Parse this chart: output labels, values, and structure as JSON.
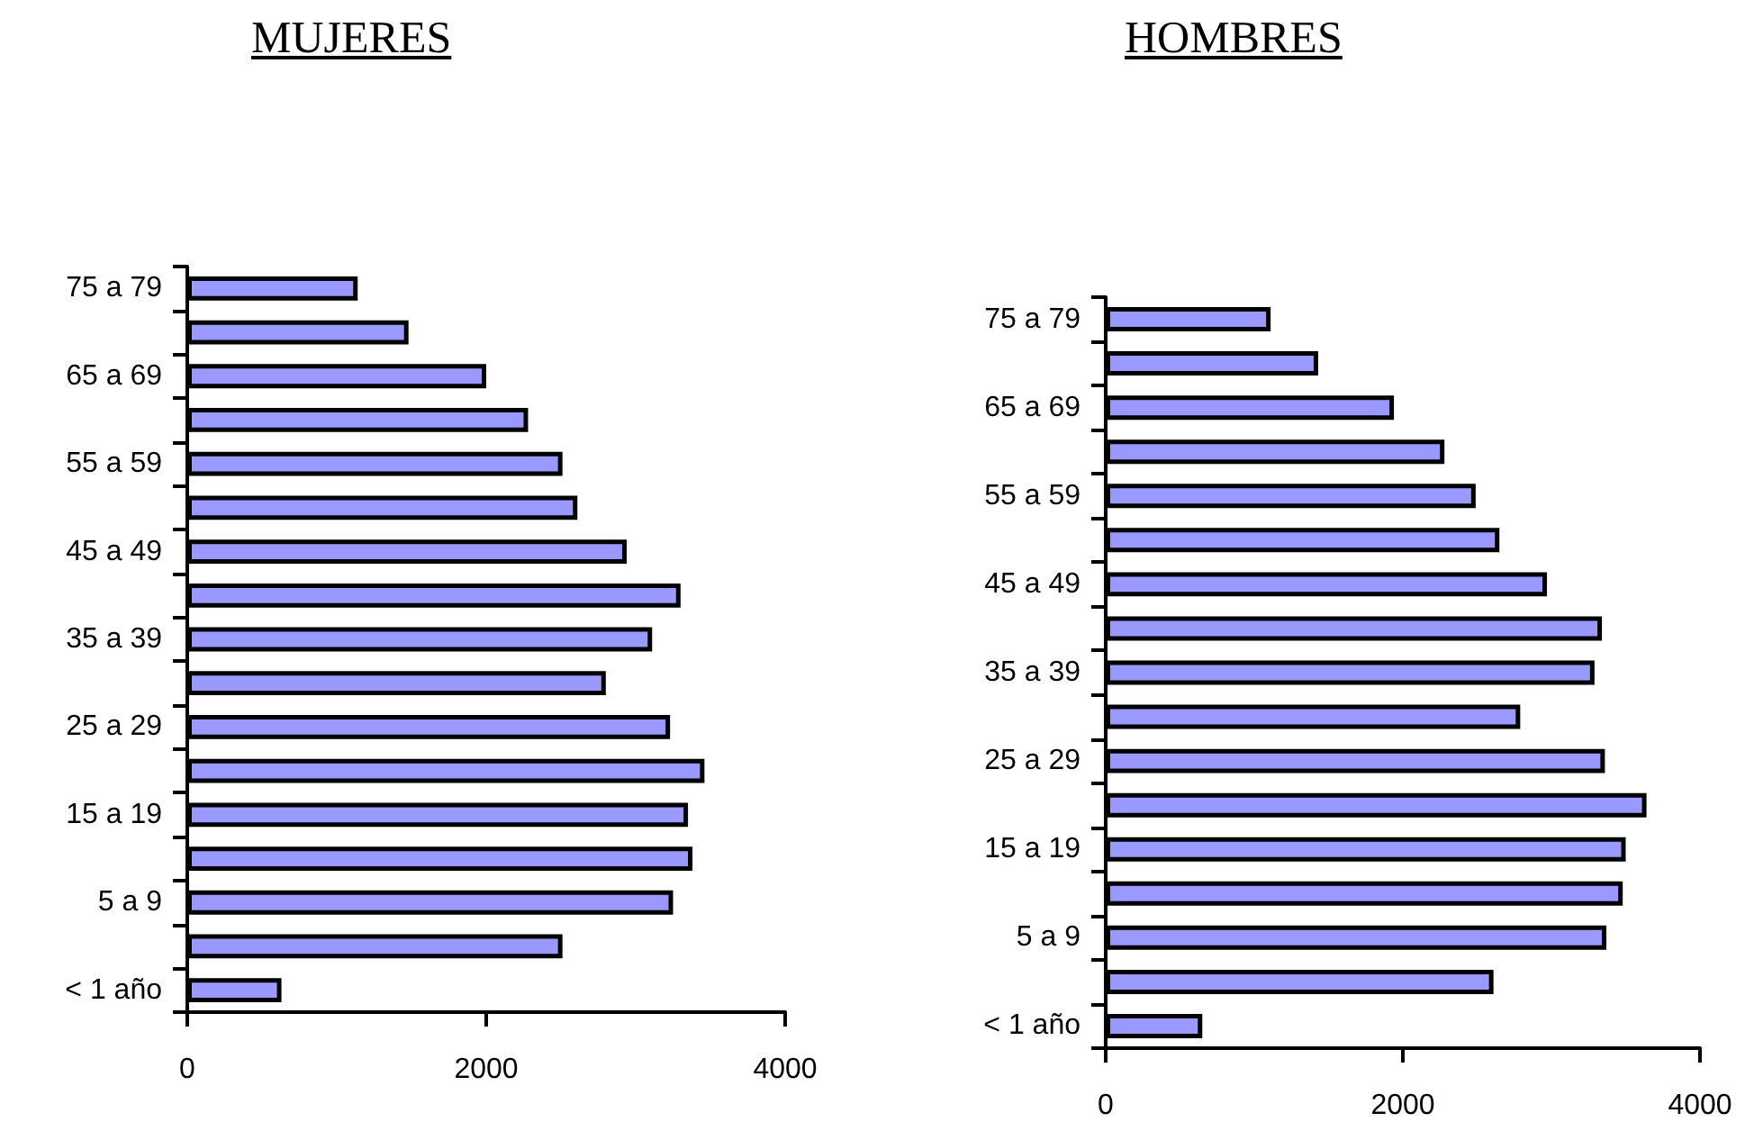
{
  "chart_data": [
    {
      "type": "bar",
      "orientation": "horizontal",
      "title": "MUJERES",
      "categories": [
        "75 a 79",
        null,
        "65 a 69",
        null,
        "55 a 59",
        null,
        "45 a 49",
        null,
        "35 a 39",
        null,
        "25 a 29",
        null,
        "15 a 19",
        null,
        "5 a 9",
        null,
        "< 1 año"
      ],
      "values": [
        1140,
        1480,
        2000,
        2280,
        2510,
        2610,
        2940,
        3300,
        3110,
        2800,
        3230,
        3460,
        3350,
        3380,
        3250,
        2510,
        630
      ],
      "color": "#9999ff",
      "xlim": [
        0,
        4000
      ],
      "xticks": [
        0,
        2000,
        4000
      ]
    },
    {
      "type": "bar",
      "orientation": "horizontal",
      "title": "HOMBRES",
      "categories": [
        "75 a 79",
        null,
        "65 a 69",
        null,
        "55 a 59",
        null,
        "45 a 49",
        null,
        "35 a 39",
        null,
        "25 a 29",
        null,
        "15 a 19",
        null,
        "5 a 9",
        null,
        "< 1 año"
      ],
      "values": [
        1110,
        1430,
        1940,
        2280,
        2490,
        2650,
        2970,
        3340,
        3290,
        2790,
        3360,
        3640,
        3500,
        3480,
        3370,
        2610,
        650
      ],
      "color": "#9999ff",
      "xlim": [
        0,
        4000
      ],
      "xticks": [
        0,
        2000,
        4000
      ]
    }
  ]
}
